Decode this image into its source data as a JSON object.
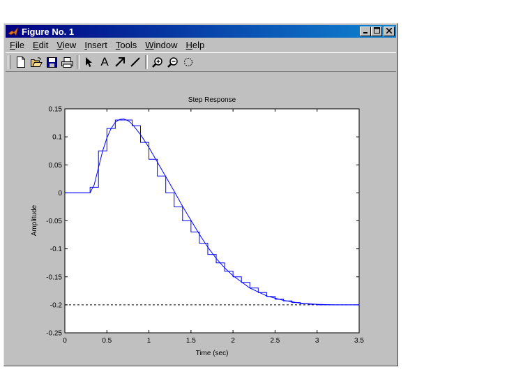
{
  "window": {
    "title": "Figure No. 1",
    "title_bar_color": "#000080"
  },
  "title_buttons": {
    "minimize_icon": "minimize-icon",
    "maximize_icon": "maximize-icon",
    "close_icon": "close-icon"
  },
  "menu": {
    "items": [
      {
        "label": "File",
        "underline": "F",
        "rest": "ile"
      },
      {
        "label": "Edit",
        "underline": "E",
        "rest": "dit"
      },
      {
        "label": "View",
        "underline": "V",
        "rest": "iew"
      },
      {
        "label": "Insert",
        "underline": "I",
        "rest": "nsert"
      },
      {
        "label": "Tools",
        "underline": "T",
        "rest": "ools"
      },
      {
        "label": "Window",
        "underline": "W",
        "rest": "indow"
      },
      {
        "label": "Help",
        "underline": "H",
        "rest": "elp"
      }
    ]
  },
  "toolbar": {
    "tools": [
      "new-file-icon",
      "open-folder-icon",
      "save-icon",
      "print-icon",
      "pointer-icon",
      "text-icon",
      "arrow-icon",
      "line-icon",
      "zoom-in-icon",
      "zoom-out-icon",
      "rotate-icon"
    ],
    "text_tool_label": "A"
  },
  "chart_data": {
    "type": "line",
    "title": "Step Response",
    "xlabel": "Time (sec)",
    "ylabel": "Amplitude",
    "xlim": [
      0,
      3.5
    ],
    "ylim": [
      -0.25,
      0.15
    ],
    "xticks": [
      0,
      0.5,
      1,
      1.5,
      2,
      2.5,
      3,
      3.5
    ],
    "xtick_labels": [
      "0",
      "0.5",
      "1",
      "1.5",
      "2",
      "2.5",
      "3",
      "3.5"
    ],
    "yticks": [
      0.15,
      0.1,
      0.05,
      0,
      -0.05,
      -0.1,
      -0.15,
      -0.2,
      -0.25
    ],
    "ytick_labels": [
      "0.15",
      "0.1",
      "0.05",
      "0",
      "-0.05",
      "-0.1",
      "-0.15",
      "-0.2",
      "-0.25"
    ],
    "steady_state": -0.2,
    "line_color": "#0000ff",
    "grid": false,
    "series": [
      {
        "style": "continuous",
        "x": [
          0,
          0.3,
          0.35,
          0.4,
          0.45,
          0.5,
          0.55,
          0.6,
          0.65,
          0.7,
          0.75,
          0.8,
          0.9,
          1.0,
          1.1,
          1.2,
          1.3,
          1.4,
          1.5,
          1.6,
          1.7,
          1.8,
          1.9,
          2.0,
          2.2,
          2.4,
          2.6,
          2.8,
          3.0,
          3.2,
          3.5
        ],
        "y": [
          0,
          0,
          0.015,
          0.045,
          0.075,
          0.098,
          0.115,
          0.126,
          0.131,
          0.132,
          0.129,
          0.123,
          0.104,
          0.081,
          0.055,
          0.029,
          0.003,
          -0.024,
          -0.049,
          -0.074,
          -0.097,
          -0.117,
          -0.134,
          -0.148,
          -0.17,
          -0.184,
          -0.192,
          -0.197,
          -0.199,
          -0.2,
          -0.2
        ]
      },
      {
        "style": "step",
        "x": [
          0,
          0.3,
          0.4,
          0.5,
          0.6,
          0.7,
          0.8,
          0.9,
          1.0,
          1.1,
          1.2,
          1.3,
          1.4,
          1.5,
          1.6,
          1.7,
          1.8,
          1.9,
          2.0,
          2.1,
          2.2,
          2.3,
          2.4,
          2.5,
          2.6,
          2.7,
          2.8,
          2.9,
          3.0,
          3.1,
          3.2,
          3.3,
          3.4,
          3.5
        ],
        "y": [
          0,
          0.01,
          0.075,
          0.115,
          0.13,
          0.13,
          0.12,
          0.09,
          0.06,
          0.03,
          0.0,
          -0.025,
          -0.05,
          -0.07,
          -0.09,
          -0.11,
          -0.125,
          -0.14,
          -0.15,
          -0.16,
          -0.17,
          -0.178,
          -0.185,
          -0.19,
          -0.193,
          -0.196,
          -0.198,
          -0.199,
          -0.2,
          -0.2,
          -0.2,
          -0.2,
          -0.2,
          -0.2
        ]
      }
    ]
  }
}
